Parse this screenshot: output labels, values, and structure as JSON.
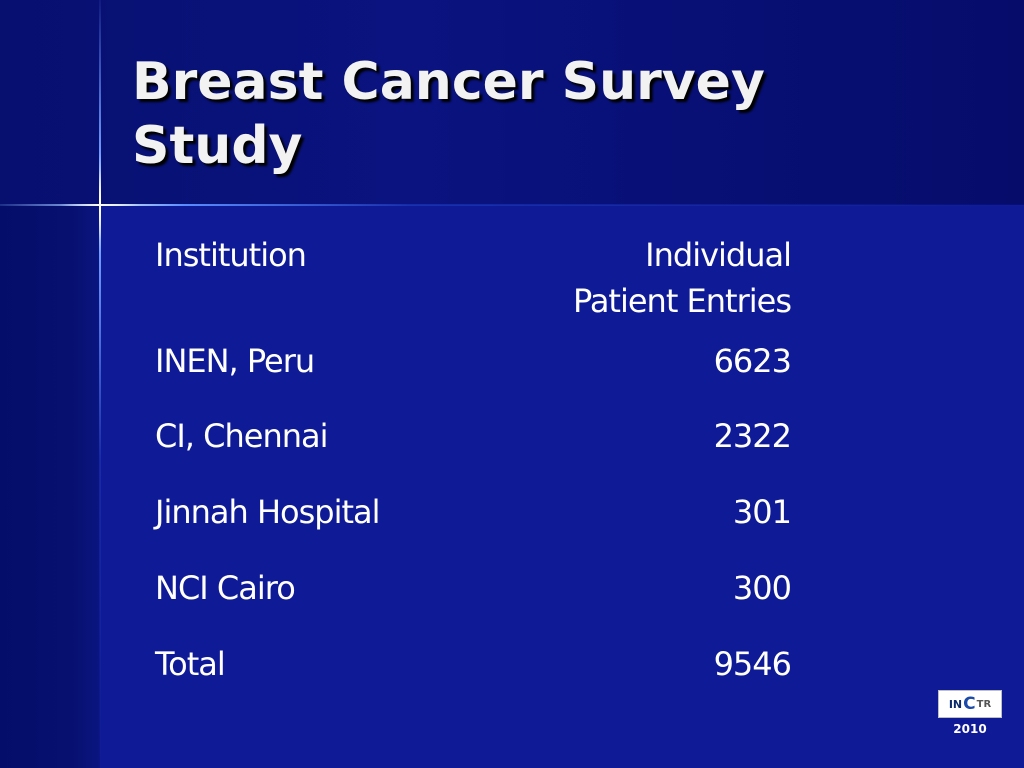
{
  "slide": {
    "title": "Breast Cancer Survey Study"
  },
  "table": {
    "headers": {
      "institution": "Institution",
      "entries_line1": "Individual",
      "entries_line2": "Patient Entries"
    },
    "rows": [
      {
        "institution": "INEN, Peru",
        "entries": "6623"
      },
      {
        "institution": "CI, Chennai",
        "entries": "2322"
      },
      {
        "institution": "Jinnah Hospital",
        "entries": "301"
      },
      {
        "institution": "NCI Cairo",
        "entries": "300"
      },
      {
        "institution": "Total",
        "entries": "9546"
      }
    ]
  },
  "footer": {
    "logo_text": "INCTR",
    "year": "2010"
  },
  "colors": {
    "background": "#0f1a96",
    "title_band": "#07106f",
    "text": "#ffffff"
  }
}
